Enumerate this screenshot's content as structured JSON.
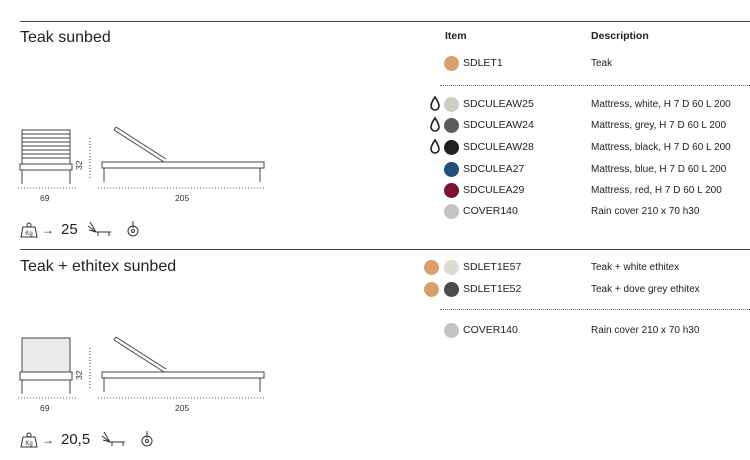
{
  "sections": [
    {
      "title": "Teak sunbed",
      "weight": "25",
      "dims": {
        "width": "69",
        "height": "32",
        "length": "205"
      },
      "rows": [
        {
          "code": "SDLET1",
          "desc": "Teak",
          "swatches": [
            "#d9a06b"
          ],
          "drop": false
        },
        {
          "code": "SDCULEAW25",
          "desc": "Mattress, white, H 7 D 60 L 200",
          "swatches": [
            "#cfcdc2"
          ],
          "drop": true
        },
        {
          "code": "SDCULEAW24",
          "desc": "Mattress, grey, H 7 D 60 L 200",
          "swatches": [
            "#5b5c58"
          ],
          "drop": true
        },
        {
          "code": "SDCULEAW28",
          "desc": "Mattress, black, H 7 D 60 L 200",
          "swatches": [
            "#1e2024"
          ],
          "drop": true
        },
        {
          "code": "SDCULEA27",
          "desc": "Mattress, blue, H 7 D 60 L 200",
          "swatches": [
            "#1f4f7a"
          ],
          "drop": false
        },
        {
          "code": "SDCULEA29",
          "desc": "Mattress, red, H 7 D 60 L 200",
          "swatches": [
            "#7a1431"
          ],
          "drop": false
        },
        {
          "code": "COVER140",
          "desc": "Rain cover 210 x 70 h30",
          "swatches": [
            "#c3c3c3"
          ],
          "drop": false
        }
      ]
    },
    {
      "title": "Teak + ethitex sunbed",
      "weight": "20,5",
      "dims": {
        "width": "69",
        "height": "32",
        "length": "205"
      },
      "rows": [
        {
          "code": "SDLET1E57",
          "desc": "Teak + white ethitex",
          "swatches": [
            "#d9a06b",
            "#dedbd2"
          ],
          "drop": false
        },
        {
          "code": "SDLET1E52",
          "desc": "Teak + dove grey ethitex",
          "swatches": [
            "#d9a06b",
            "#4a4a4a"
          ],
          "drop": false
        },
        {
          "code": "COVER140",
          "desc": "Rain cover 210 x 70 h30",
          "swatches": [
            "#c3c3c3"
          ],
          "drop": false
        }
      ]
    }
  ],
  "headers": {
    "item": "Item",
    "description": "Description"
  },
  "icons": {
    "weight": "weight-kg-icon",
    "arrow": "arrow-right-icon",
    "recline": "recline-positions-icon",
    "wheel": "wheel-icon",
    "drop": "water-drop-icon"
  },
  "weight_unit_glyph": "Kg",
  "arrow_glyph": "→"
}
